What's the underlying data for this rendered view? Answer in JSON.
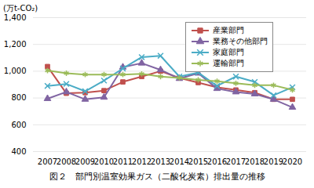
{
  "chart_data": {
    "type": "line",
    "title": "図２　部門別温室効果ガス（二酸化炭素）排出量の推移",
    "y_label": "(万t-CO₂)",
    "categories": [
      "2007",
      "2008",
      "2009",
      "2010",
      "2011",
      "2012",
      "2013",
      "2014",
      "2015",
      "2016",
      "2017",
      "2018",
      "2019",
      "2020"
    ],
    "series": [
      {
        "name": "産業部門",
        "color": "#c0504d",
        "marker": "square",
        "values": [
          1035,
          835,
          840,
          855,
          920,
          960,
          1000,
          950,
          915,
          880,
          860,
          840,
          790,
          790
        ]
      },
      {
        "name": "業務その他部門",
        "color": "#8064a2",
        "marker": "triangle",
        "values": [
          795,
          845,
          790,
          805,
          1030,
          1060,
          1010,
          945,
          985,
          870,
          845,
          830,
          790,
          730
        ]
      },
      {
        "name": "家庭部門",
        "color": "#4bacc6",
        "marker": "x",
        "values": [
          890,
          905,
          850,
          930,
          1020,
          1105,
          1115,
          960,
          990,
          890,
          960,
          920,
          820,
          880
        ]
      },
      {
        "name": "運輸部門",
        "color": "#9bbb59",
        "marker": "asterisk",
        "values": [
          1005,
          985,
          975,
          975,
          975,
          980,
          960,
          950,
          935,
          925,
          910,
          895,
          895,
          860
        ]
      }
    ],
    "ylim": [
      400,
      1400
    ],
    "yticks": [
      400,
      600,
      800,
      {
        "value": 1000,
        "label": "1,000"
      },
      {
        "value": 1200,
        "label": "1,200"
      },
      {
        "value": 1400,
        "label": "1,400"
      }
    ],
    "grid": true,
    "legend": "upper right"
  }
}
